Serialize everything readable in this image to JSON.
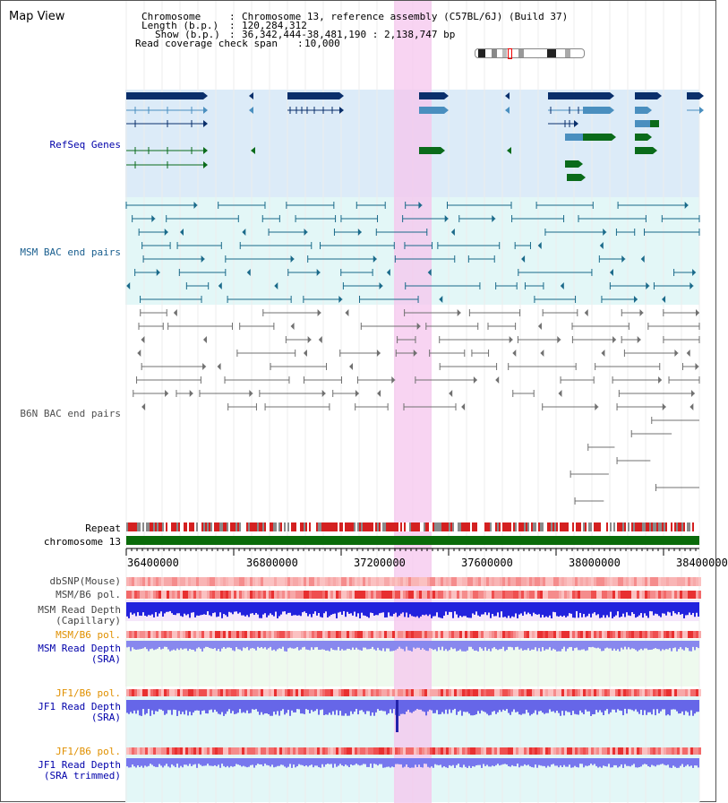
{
  "title": "Map View",
  "header": {
    "chromosome_key": "Chromosome",
    "chromosome_val": "Chromosome 13, reference assembly (C57BL/6J) (Build 37)",
    "length_key": "Length (b.p.)",
    "length_val": "120,284,312",
    "show_key": "Show (b.p.)",
    "show_val": "36,342,444-38,481,190 : 2,138,747 bp",
    "coverage_key": "Read coverage check span",
    "coverage_val": "10,000"
  },
  "tracks": {
    "refseq": "RefSeq Genes",
    "msm_bac": "MSM BAC end pairs",
    "b6n_bac": "B6N BAC end pairs",
    "repeat": "Repeat",
    "chromosome": "chromosome 13",
    "dbsnp": "dbSNP(Mouse)",
    "msm_b6_pol_1": "MSM/B6 pol.",
    "msm_depth_cap_1": "MSM Read Depth",
    "msm_depth_cap_2": "(Capillary)",
    "msm_b6_pol_2": "MSM/B6 pol.",
    "msm_depth_sra_1": "MSM Read Depth",
    "msm_depth_sra_2": "(SRA)",
    "jf1_pol_1": "JF1/B6 pol.",
    "jf1_depth_sra_1": "JF1 Read Depth",
    "jf1_depth_sra_2": "(SRA)",
    "jf1_pol_2": "JF1/B6 pol.",
    "jf1_trim_1": "JF1 Read Depth",
    "jf1_trim_2": "(SRA trimmed)"
  },
  "ruler": [
    "36400000",
    "36800000",
    "37200000",
    "37600000",
    "38000000",
    "38400000"
  ],
  "colors": {
    "refseq_dark": "#0a2f6b",
    "refseq_light": "#4a8fbf",
    "refseq_green": "#0a6b1a",
    "msm_bac": "#1a6a8a",
    "b6n_bac": "#707070",
    "chromosome_bar": "#0a6b0a",
    "highlight": "#f5c6ee",
    "label_blue": "#0000aa",
    "label_teal": "#1a5f8f",
    "label_orange": "#e09000"
  }
}
